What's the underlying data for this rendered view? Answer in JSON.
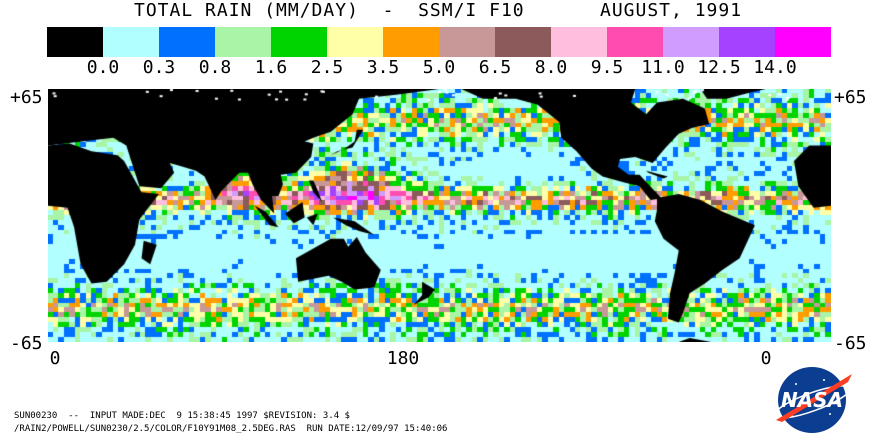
{
  "title": {
    "left": "TOTAL RAIN (MM/DAY)  -  SSM/I F10",
    "right": "AUGUST, 1991"
  },
  "legend": {
    "colors": [
      "#000000",
      "#b2ffff",
      "#0070ff",
      "#a8f5a8",
      "#00d400",
      "#ffffa8",
      "#ff9c00",
      "#c89898",
      "#8c5a5a",
      "#ffbede",
      "#ff4cb0",
      "#d09cff",
      "#a442ff",
      "#ff00ff"
    ],
    "tick_labels": [
      "0.0",
      "0.3",
      "0.8",
      "1.6",
      "2.5",
      "3.5",
      "5.0",
      "6.5",
      "8.0",
      "9.5",
      "11.0",
      "12.5",
      "14.0"
    ]
  },
  "axes": {
    "lat_top": "+65",
    "lat_bottom": "-65",
    "lon_labels": [
      "0",
      "180",
      "0"
    ]
  },
  "footer": {
    "line1": "SUN00230  --  INPUT MADE:DEC  9 15:38:45 1997 $REVISION: 3.4 $",
    "line2": "/RAIN2/POWELL/SUN0230/2.5/COLOR/F10Y91M08_2.5DEG.RAS  RUN DATE:12/09/97 15:40:06"
  },
  "logo": {
    "text": "NASA",
    "icon": "nasa-meatball-logo"
  }
}
